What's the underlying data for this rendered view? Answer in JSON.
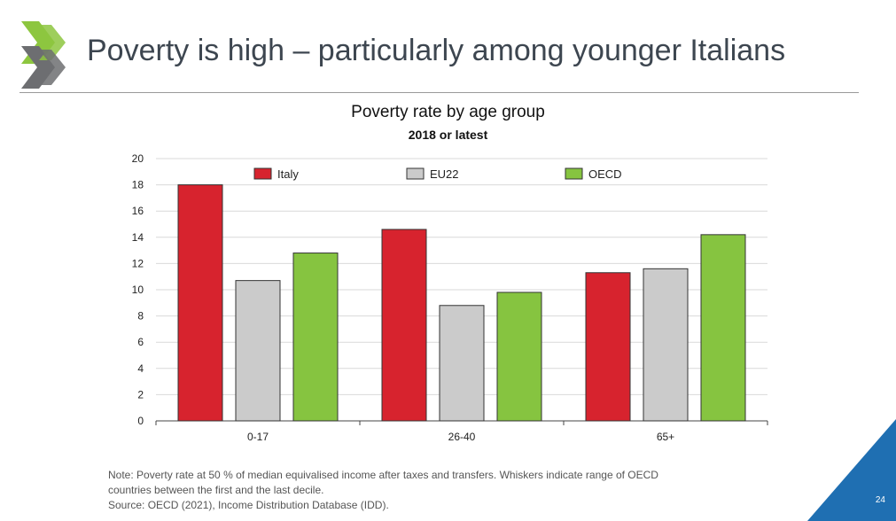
{
  "slide": {
    "title": "Poverty is high – particularly among younger Italians",
    "page_number": "24",
    "note_lines": [
      "Note: Poverty rate at 50 % of median equivalised income after taxes and transfers. Whiskers indicate range of OECD",
      "countries between the first and the last decile.",
      "Source: OECD (2021), Income Distribution Database (IDD)."
    ]
  },
  "colors": {
    "italy": "#d7232e",
    "eu22": "#cbcbcb",
    "oecd": "#86c440",
    "logo_light": "#8dc63f",
    "logo_dark": "#6d6e71",
    "corner": "#1f6fb2"
  },
  "icons": {
    "logo": "chevron-double-icon"
  },
  "chart_data": {
    "type": "bar",
    "title": "Poverty rate by age group",
    "subtitle": "2018 or latest",
    "categories": [
      "0-17",
      "26-40",
      "65+"
    ],
    "series": [
      {
        "name": "Italy",
        "values": [
          18.0,
          14.6,
          11.3
        ]
      },
      {
        "name": "EU22",
        "values": [
          10.7,
          8.8,
          11.6
        ]
      },
      {
        "name": "OECD",
        "values": [
          12.8,
          9.8,
          14.2
        ]
      }
    ],
    "ylim": [
      0,
      20
    ],
    "yticks": [
      "0",
      "2",
      "4",
      "6",
      "8",
      "10",
      "12",
      "14",
      "16",
      "18",
      "20"
    ],
    "grid": true,
    "legend_position": "top"
  }
}
